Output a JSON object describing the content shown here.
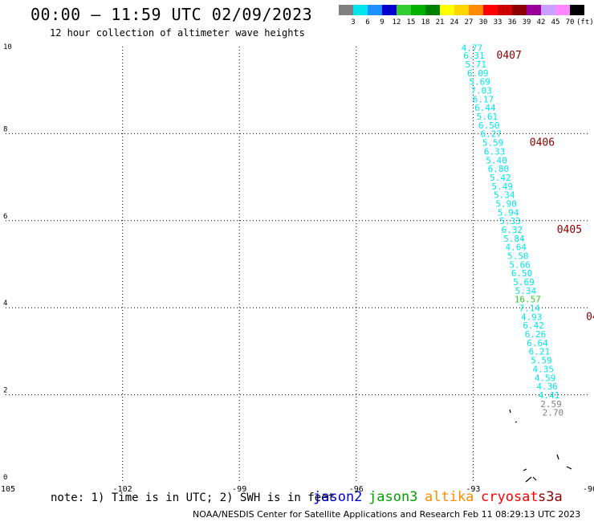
{
  "header": {
    "title": "00:00 – 11:59 UTC 02/09/2023",
    "subtitle": "12 hour collection of altimeter wave heights"
  },
  "legend": {
    "unit": "(ft)",
    "bins": [
      {
        "label": "3",
        "color": "#808080"
      },
      {
        "label": "6",
        "color": "#00e5ee"
      },
      {
        "label": "9",
        "color": "#1e90ff"
      },
      {
        "label": "12",
        "color": "#0000cd"
      },
      {
        "label": "15",
        "color": "#32cd32"
      },
      {
        "label": "18",
        "color": "#00b000"
      },
      {
        "label": "21",
        "color": "#008000"
      },
      {
        "label": "24",
        "color": "#ffff00"
      },
      {
        "label": "27",
        "color": "#ffd700"
      },
      {
        "label": "30",
        "color": "#ff8c00"
      },
      {
        "label": "33",
        "color": "#ff0000"
      },
      {
        "label": "36",
        "color": "#cc0000"
      },
      {
        "label": "39",
        "color": "#8b0000"
      },
      {
        "label": "42",
        "color": "#990099"
      },
      {
        "label": "45",
        "color": "#c8a0ff"
      },
      {
        "label": "70",
        "color": "#ff88ff"
      },
      {
        "label": "",
        "color": "#000000"
      }
    ]
  },
  "chart_data": {
    "type": "scatter",
    "title": "00:00 – 11:59 UTC 02/09/2023",
    "subtitle": "12 hour collection of altimeter wave heights",
    "xlim": [
      -105,
      -90
    ],
    "ylim": [
      0,
      10
    ],
    "x_ticks": [
      "-105",
      "-102",
      "-99",
      "-96",
      "-93",
      "-90"
    ],
    "y_ticks": [
      "0",
      "2",
      "4",
      "6",
      "8",
      "10"
    ],
    "grid": true,
    "series": [
      {
        "name": "jason3",
        "points": [
          {
            "x": -93.03,
            "y": 9.9,
            "label": "4.77",
            "color": "#00e5ee"
          },
          {
            "x": -92.98,
            "y": 9.72,
            "label": "6.31",
            "color": "#00e5ee"
          },
          {
            "x": -92.93,
            "y": 9.52,
            "label": "5.71",
            "color": "#00e5ee"
          },
          {
            "x": -92.88,
            "y": 9.32,
            "label": "6.09",
            "color": "#00e5ee"
          },
          {
            "x": -92.83,
            "y": 9.12,
            "label": "5.69",
            "color": "#00e5ee"
          },
          {
            "x": -92.79,
            "y": 8.92,
            "label": "7.03",
            "color": "#00e5ee"
          },
          {
            "x": -92.74,
            "y": 8.72,
            "label": "6.17",
            "color": "#00e5ee"
          },
          {
            "x": -92.69,
            "y": 8.52,
            "label": "6.44",
            "color": "#00e5ee"
          },
          {
            "x": -92.64,
            "y": 8.32,
            "label": "5.61",
            "color": "#00e5ee"
          },
          {
            "x": -92.59,
            "y": 8.12,
            "label": "6.50",
            "color": "#00e5ee"
          },
          {
            "x": -92.54,
            "y": 7.92,
            "label": "6.27",
            "color": "#00e5ee"
          },
          {
            "x": -92.49,
            "y": 7.72,
            "label": "5.59",
            "color": "#00e5ee"
          },
          {
            "x": -92.45,
            "y": 7.52,
            "label": "6.33",
            "color": "#00e5ee"
          },
          {
            "x": -92.4,
            "y": 7.32,
            "label": "5.40",
            "color": "#00e5ee"
          },
          {
            "x": -92.35,
            "y": 7.12,
            "label": "6.80",
            "color": "#00e5ee"
          },
          {
            "x": -92.3,
            "y": 6.92,
            "label": "5.42",
            "color": "#00e5ee"
          },
          {
            "x": -92.25,
            "y": 6.72,
            "label": "5.49",
            "color": "#00e5ee"
          },
          {
            "x": -92.2,
            "y": 6.52,
            "label": "5.34",
            "color": "#00e5ee"
          },
          {
            "x": -92.15,
            "y": 6.32,
            "label": "5.90",
            "color": "#00e5ee"
          },
          {
            "x": -92.1,
            "y": 6.12,
            "label": "5.94",
            "color": "#00e5ee"
          },
          {
            "x": -92.05,
            "y": 5.92,
            "label": "5.33",
            "color": "#00e5ee"
          },
          {
            "x": -92.0,
            "y": 5.72,
            "label": "6.32",
            "color": "#00e5ee"
          },
          {
            "x": -91.95,
            "y": 5.52,
            "label": "5.84",
            "color": "#00e5ee"
          },
          {
            "x": -91.9,
            "y": 5.32,
            "label": "4.64",
            "color": "#00e5ee"
          },
          {
            "x": -91.85,
            "y": 5.12,
            "label": "5.50",
            "color": "#00e5ee"
          },
          {
            "x": -91.8,
            "y": 4.92,
            "label": "5.66",
            "color": "#00e5ee"
          },
          {
            "x": -91.75,
            "y": 4.72,
            "label": "6.50",
            "color": "#00e5ee"
          },
          {
            "x": -91.7,
            "y": 4.52,
            "label": "5.69",
            "color": "#00e5ee"
          },
          {
            "x": -91.65,
            "y": 4.32,
            "label": "5.34",
            "color": "#00e5ee"
          },
          {
            "x": -91.6,
            "y": 4.12,
            "label": "16.57",
            "color": "#32cd32"
          },
          {
            "x": -91.55,
            "y": 3.92,
            "label": "7.14",
            "color": "#00e5ee"
          },
          {
            "x": -91.5,
            "y": 3.72,
            "label": "4.93",
            "color": "#00e5ee"
          },
          {
            "x": -91.45,
            "y": 3.52,
            "label": "6.42",
            "color": "#00e5ee"
          },
          {
            "x": -91.4,
            "y": 3.32,
            "label": "6.26",
            "color": "#00e5ee"
          },
          {
            "x": -91.35,
            "y": 3.12,
            "label": "6.64",
            "color": "#00e5ee"
          },
          {
            "x": -91.3,
            "y": 2.92,
            "label": "6.21",
            "color": "#00e5ee"
          },
          {
            "x": -91.25,
            "y": 2.72,
            "label": "5.59",
            "color": "#00e5ee"
          },
          {
            "x": -91.2,
            "y": 2.52,
            "label": "4.35",
            "color": "#00e5ee"
          },
          {
            "x": -91.15,
            "y": 2.32,
            "label": "4.59",
            "color": "#00e5ee"
          },
          {
            "x": -91.1,
            "y": 2.12,
            "label": "4.36",
            "color": "#00e5ee"
          },
          {
            "x": -91.05,
            "y": 1.92,
            "label": "4.41",
            "color": "#00e5ee"
          },
          {
            "x": -91.0,
            "y": 1.72,
            "label": "2.59",
            "color": "#808080"
          },
          {
            "x": -90.95,
            "y": 1.52,
            "label": "2.70",
            "color": "#808080"
          }
        ]
      }
    ],
    "time_markers": [
      {
        "x": -92.4,
        "y": 9.72,
        "label": "0407"
      },
      {
        "x": -91.55,
        "y": 7.72,
        "label": "0406"
      },
      {
        "x": -90.85,
        "y": 5.72,
        "label": "0405"
      },
      {
        "x": -90.1,
        "y": 3.72,
        "label": "04"
      }
    ]
  },
  "footer": {
    "note": "note: 1) Time is in UTC; 2) SWH is in feet",
    "satellites": [
      {
        "label": "jason2",
        "color": "#0000cd"
      },
      {
        "label": "jason3",
        "color": "#00a000"
      },
      {
        "label": "altika",
        "color": "#ff8c00"
      },
      {
        "label": "cryosat",
        "color": "#ff0000"
      },
      {
        "label": "s3a",
        "color": "#8b0000"
      }
    ],
    "credit": "NOAA/NESDIS Center for Satellite Applications and Research    Feb 11 08:29:13 UTC 2023"
  }
}
